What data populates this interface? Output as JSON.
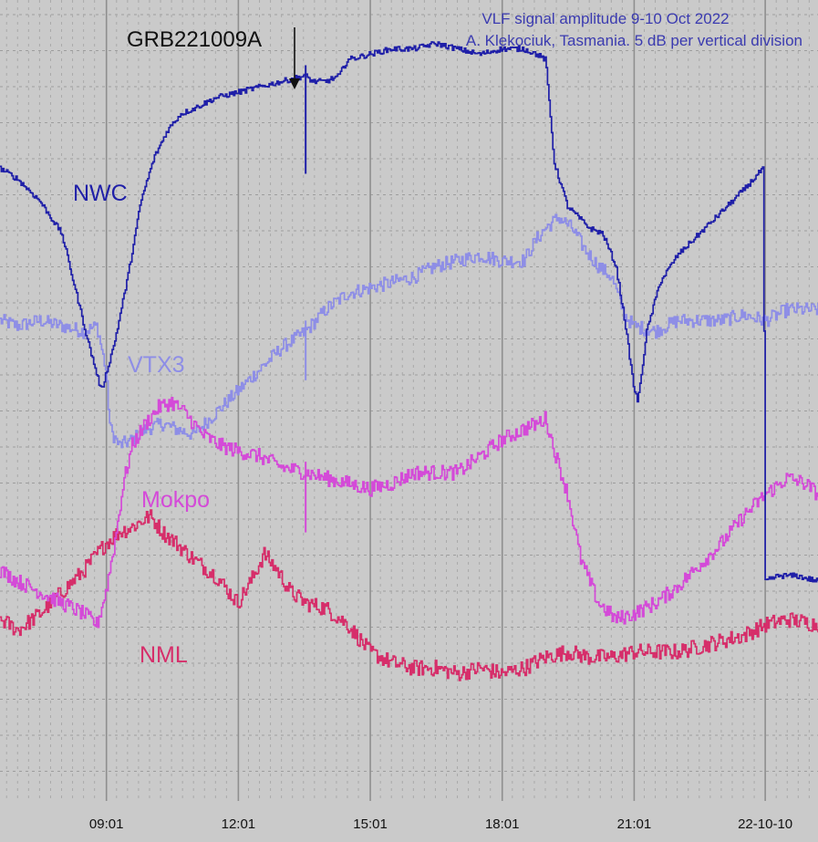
{
  "chart_data": {
    "type": "line",
    "title": [
      "VLF signal amplitude 9-10 Oct 2022",
      "A. Klekociuk, Tasmania. 5 dB per vertical division"
    ],
    "ylabel": "",
    "y_units_note": "5 dB per vertical division",
    "ylim": [
      0,
      155
    ],
    "x_tick_labels": [
      "09:01",
      "12:01",
      "15:01",
      "18:01",
      "21:01",
      "22-10-10"
    ],
    "x_ticks": [
      9.02,
      12.02,
      15.02,
      18.02,
      21.02,
      24.0
    ],
    "xlim": [
      6.6,
      25.2
    ],
    "grid": true,
    "annotations": [
      {
        "text": "GRB221009A",
        "x": 13.55
      }
    ],
    "series": [
      {
        "name": "NWC",
        "color": "#1f1fa8",
        "x": [
          6.6,
          7.0,
          7.5,
          8.0,
          8.3,
          8.6,
          8.9,
          9.2,
          9.5,
          9.8,
          10.1,
          10.4,
          10.7,
          11.0,
          11.5,
          12.0,
          12.5,
          13.0,
          13.5,
          13.55,
          13.7,
          14.0,
          14.3,
          14.5,
          15.0,
          15.5,
          16.0,
          16.5,
          17.0,
          17.5,
          18.0,
          18.5,
          18.8,
          19.0,
          19.2,
          19.5,
          20.0,
          20.3,
          20.6,
          20.8,
          21.0,
          21.1,
          21.3,
          21.6,
          22.0,
          22.5,
          23.0,
          23.5,
          23.95,
          24.0,
          24.3,
          24.7,
          25.2
        ],
        "values": [
          124,
          122,
          118,
          112,
          102,
          92,
          83,
          92,
          104,
          118,
          126,
          131,
          134,
          135,
          137,
          138,
          139,
          140,
          141,
          141,
          140,
          140,
          141,
          144,
          145,
          146,
          146,
          147,
          146,
          145,
          146,
          146,
          145,
          144,
          125,
          117,
          113,
          112,
          106,
          96,
          84,
          81,
          94,
          103,
          108,
          112,
          116,
          120,
          124,
          48,
          49,
          49,
          48
        ]
      },
      {
        "name": "VTX3",
        "color": "#8e8ee6",
        "x": [
          6.6,
          7.0,
          7.5,
          8.0,
          8.5,
          8.8,
          9.0,
          9.1,
          9.3,
          9.6,
          9.9,
          10.3,
          10.6,
          11.0,
          11.5,
          12.0,
          12.5,
          13.0,
          13.55,
          14.0,
          14.5,
          15.0,
          15.5,
          16.0,
          16.5,
          17.0,
          17.5,
          18.0,
          18.5,
          18.8,
          19.0,
          19.3,
          19.6,
          19.9,
          20.2,
          20.5,
          20.8,
          21.0,
          21.5,
          22.0,
          22.5,
          23.0,
          23.5,
          24.0,
          24.5,
          25.2
        ],
        "values": [
          96,
          95,
          96,
          95,
          94,
          95,
          87,
          76,
          73,
          74,
          76,
          77,
          76,
          75,
          79,
          83,
          87,
          91,
          94,
          98,
          101,
          102,
          103,
          104,
          106,
          107,
          108,
          107,
          107,
          111,
          113,
          115,
          113,
          109,
          106,
          104,
          97,
          95,
          94,
          96,
          96,
          96,
          97,
          96,
          98,
          98
        ]
      },
      {
        "name": "Mokpo",
        "color": "#d44ad8",
        "x": [
          6.6,
          7.0,
          7.5,
          8.0,
          8.5,
          8.8,
          9.0,
          9.2,
          9.4,
          9.6,
          9.9,
          10.2,
          10.5,
          10.8,
          11.2,
          11.6,
          12.0,
          12.5,
          13.0,
          13.55,
          14.0,
          14.5,
          15.0,
          15.5,
          16.0,
          16.5,
          17.0,
          17.5,
          18.0,
          18.5,
          18.8,
          19.0,
          19.2,
          19.5,
          19.8,
          20.2,
          20.6,
          21.0,
          21.5,
          22.0,
          22.5,
          23.0,
          23.5,
          24.0,
          24.5,
          24.9,
          25.2
        ],
        "values": [
          50,
          48,
          46,
          44,
          42,
          40,
          46,
          55,
          66,
          73,
          77,
          80,
          81,
          79,
          75,
          73,
          72,
          71,
          69,
          68,
          67,
          66,
          65,
          66,
          68,
          68,
          68,
          71,
          74,
          76,
          77,
          78,
          72,
          64,
          52,
          44,
          41,
          42,
          44,
          47,
          51,
          55,
          60,
          64,
          67,
          66,
          64
        ]
      },
      {
        "name": "NML",
        "color": "#d62e6a",
        "x": [
          6.6,
          7.0,
          7.5,
          8.0,
          8.5,
          8.8,
          9.0,
          9.3,
          9.6,
          10.0,
          10.3,
          10.6,
          11.0,
          11.5,
          12.0,
          12.3,
          12.6,
          12.9,
          13.2,
          13.55,
          14.0,
          14.5,
          15.0,
          15.5,
          16.0,
          16.5,
          17.0,
          17.5,
          18.0,
          18.5,
          19.0,
          19.5,
          20.0,
          20.5,
          21.0,
          21.5,
          22.0,
          22.5,
          23.0,
          23.5,
          24.0,
          24.5,
          25.2
        ],
        "values": [
          41,
          39,
          42,
          46,
          50,
          53,
          55,
          57,
          58,
          60,
          57,
          55,
          52,
          49,
          44,
          48,
          53,
          50,
          46,
          44,
          43,
          40,
          35,
          33,
          32,
          32,
          31,
          32,
          31,
          32,
          34,
          35,
          34,
          34,
          35,
          35,
          35,
          36,
          37,
          38,
          40,
          41,
          40
        ]
      }
    ]
  }
}
